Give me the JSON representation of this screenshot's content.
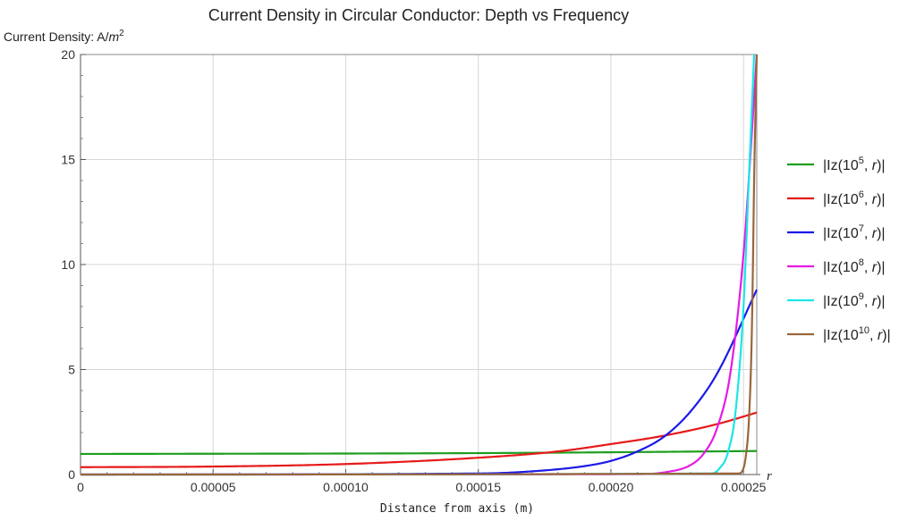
{
  "chart_data": {
    "type": "line",
    "title": "Current Density in Circular Conductor: Depth vs Frequency",
    "ylabel": "Current Density: A/",
    "ylabel_unit_base": "m",
    "ylabel_unit_exp": "2",
    "xlabel": "Distance from axis (m)",
    "x_axis_symbol": "r",
    "xlim": [
      0,
      0.000255
    ],
    "ylim": [
      0,
      20
    ],
    "x_ticks": [
      {
        "value": 0,
        "label": "0"
      },
      {
        "value": 5e-05,
        "label": "0.00005"
      },
      {
        "value": 0.0001,
        "label": "0.00010"
      },
      {
        "value": 0.00015,
        "label": "0.00015"
      },
      {
        "value": 0.0002,
        "label": "0.00020"
      },
      {
        "value": 0.00025,
        "label": "0.00025"
      }
    ],
    "y_ticks": [
      {
        "value": 0,
        "label": "0"
      },
      {
        "value": 5,
        "label": "5"
      },
      {
        "value": 10,
        "label": "10"
      },
      {
        "value": 15,
        "label": "15"
      },
      {
        "value": 20,
        "label": "20"
      }
    ],
    "grid": true,
    "legend_position": "right",
    "series": [
      {
        "name": "|Iz(10^5, r)|",
        "legend_exp": "5",
        "color": "#1f9e1f",
        "x": [
          0,
          5e-05,
          0.0001,
          0.00015,
          0.0002,
          0.000255
        ],
        "y": [
          0.98,
          0.99,
          1.0,
          1.02,
          1.06,
          1.12
        ]
      },
      {
        "name": "|Iz(10^6, r)|",
        "legend_exp": "6",
        "color": "#e61a1a",
        "x": [
          0,
          5e-05,
          0.0001,
          0.00015,
          0.00018,
          0.0002,
          0.00022,
          0.00024,
          0.000255
        ],
        "y": [
          0.35,
          0.38,
          0.5,
          0.8,
          1.1,
          1.45,
          1.85,
          2.4,
          2.95
        ]
      },
      {
        "name": "|Iz(10^7, r)|",
        "legend_exp": "7",
        "color": "#1a1ae6",
        "x": [
          0,
          0.00015,
          0.00017,
          0.00019,
          0.0002,
          0.00021,
          0.00022,
          0.00023,
          0.00024,
          0.000255
        ],
        "y": [
          0,
          0.05,
          0.15,
          0.4,
          0.65,
          1.1,
          1.8,
          3.0,
          4.8,
          8.8
        ]
      },
      {
        "name": "|Iz(10^8, r)|",
        "legend_exp": "8",
        "color": "#e61ae6",
        "x": [
          0,
          0.00021,
          0.00022,
          0.00023,
          0.000235,
          0.00024,
          0.000245,
          0.00025,
          0.000253,
          0.000255
        ],
        "y": [
          0,
          0.02,
          0.1,
          0.45,
          1.0,
          2.2,
          4.8,
          10.5,
          16.0,
          20.0
        ]
      },
      {
        "name": "|Iz(10^9, r)|",
        "legend_exp": "9",
        "color": "#1ae6e6",
        "x": [
          0,
          0.000238,
          0.000241,
          0.000244,
          0.000247,
          0.00025,
          0.000252,
          0.000254
        ],
        "y": [
          0,
          0.05,
          0.3,
          1.0,
          3.0,
          8.0,
          14.0,
          20.0
        ]
      },
      {
        "name": "|Iz(10^10, r)|",
        "legend_exp": "10",
        "color": "#99663a",
        "x": [
          0,
          0.000248,
          0.00025,
          0.000251,
          0.000252,
          0.000253,
          0.0002535,
          0.000254,
          0.000255
        ],
        "y": [
          0,
          0.05,
          0.3,
          1.0,
          2.5,
          6.0,
          9.5,
          14.0,
          20.0
        ]
      }
    ]
  }
}
